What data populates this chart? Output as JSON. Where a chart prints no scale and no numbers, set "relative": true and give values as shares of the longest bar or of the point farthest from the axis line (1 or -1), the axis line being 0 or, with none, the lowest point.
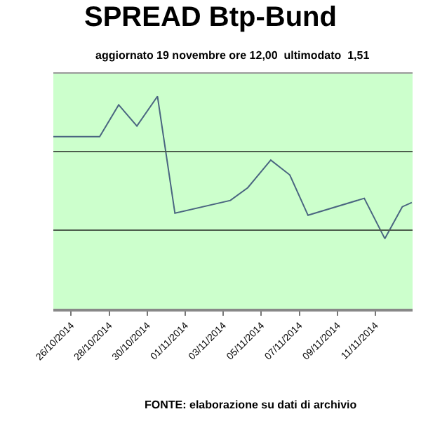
{
  "chart_data": {
    "type": "line",
    "relative": true,
    "title": "SPREAD Btp-Bund",
    "subtitle": "aggiornato 19 novembre ore 12,00  ultimodato  1,51",
    "x": [
      "2014-10-25T01:30",
      "2014-10-27T12:00",
      "2014-10-28T12:00",
      "2014-10-29T11:00",
      "2014-10-30T13:00",
      "2014-10-31T11:00",
      "2014-11-03T09:00",
      "2014-11-04T07:00",
      "2014-11-05T12:00",
      "2014-11-06T12:00",
      "2014-11-07T11:00",
      "2014-11-10T10:00",
      "2014-11-11T12:00",
      "2014-11-12T10:00",
      "2014-11-12T22:00"
    ],
    "series": [
      {
        "color": "#4a6580",
        "values": [
          0.81,
          0.81,
          0.96,
          0.86,
          1,
          0.45,
          0.51,
          0.57,
          0.7,
          0.63,
          0.44,
          0.52,
          0.33,
          0.48,
          0.5
        ]
      }
    ],
    "xlim": [
      "2014-10-25T01:30",
      "2014-11-12T23:00"
    ],
    "xticks": [
      {
        "value": "2014-10-26",
        "label": "26/10/2014"
      },
      {
        "value": "2014-10-28",
        "label": "28/10/2014"
      },
      {
        "value": "2014-10-30",
        "label": "30/10/2014"
      },
      {
        "value": "2014-11-01",
        "label": "01/11/2014"
      },
      {
        "value": "2014-11-03",
        "label": "03/11/2014"
      },
      {
        "value": "2014-11-05",
        "label": "05/11/2014"
      },
      {
        "value": "2014-11-07",
        "label": "07/11/2014"
      },
      {
        "value": "2014-11-09",
        "label": "09/11/2014"
      },
      {
        "value": "2014-11-11",
        "label": "11/11/2014"
      }
    ],
    "ref_lines": [
      {
        "axis": "y",
        "value": 0.74,
        "color": "#4d5d4d"
      },
      {
        "axis": "y",
        "value": 0.37,
        "color": "#4d5d4d"
      }
    ],
    "annotations": [
      "FONTE: elaborazione su dati di archivio"
    ],
    "grid": false,
    "marker": "none",
    "line_style": "solid"
  }
}
